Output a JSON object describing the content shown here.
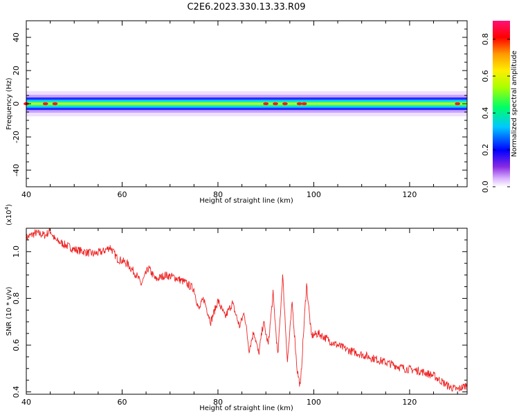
{
  "title": "C2E6.2023.330.13.33.R09",
  "chart_data": [
    {
      "type": "heatmap",
      "xlabel": "Height of straight line (km)",
      "ylabel": "Frequency (Hz)",
      "xlim": [
        40,
        132
      ],
      "ylim": [
        -50,
        50
      ],
      "xticks": [
        40,
        60,
        80,
        100,
        120
      ],
      "yticks": [
        -40,
        -20,
        0,
        20,
        40
      ],
      "band_center_hz": 0,
      "band_halfwidth_hz": 4,
      "colorbar": {
        "label": "Normalized spectral amplitude",
        "range": [
          0.0,
          0.9
        ],
        "ticks": [
          "0.0",
          "0.2",
          "0.4",
          "0.6",
          "0.8"
        ]
      },
      "peak_x_km": [
        40,
        44,
        46,
        90,
        92,
        94,
        97,
        98,
        130
      ]
    },
    {
      "type": "line",
      "xlabel": "Height of straight line (km)",
      "ylabel": "SNR (10 * v/v)",
      "yscale_label": "(x10",
      "yscale_exp": "4",
      "yscale_close": ")",
      "xlim": [
        40,
        132
      ],
      "ylim": [
        0.39,
        1.1
      ],
      "xticks": [
        40,
        60,
        80,
        100,
        120
      ],
      "yticks": [
        0.4,
        0.6,
        0.8,
        1.0
      ],
      "ytick_labels": [
        "0.4",
        "0.6",
        "0.8",
        "1.0"
      ],
      "color": "#ee2222",
      "x": [
        40,
        42,
        44,
        45,
        46,
        48,
        50,
        52,
        54,
        56,
        57.5,
        59,
        61,
        63,
        64,
        65.5,
        67,
        69,
        71,
        73,
        75,
        76,
        77,
        78.5,
        80,
        81.5,
        83,
        84.5,
        85.5,
        86.5,
        87.5,
        88.5,
        89.5,
        90.5,
        91.5,
        92.5,
        93.5,
        94.5,
        95.5,
        96.5,
        97.2,
        98,
        98.5,
        99.5,
        101,
        104,
        107,
        110,
        113,
        116,
        119,
        122,
        125,
        127,
        128.5,
        130,
        132
      ],
      "y": [
        1.06,
        1.08,
        1.07,
        1.09,
        1.05,
        1.03,
        1.01,
        1.0,
        0.99,
        1.0,
        1.02,
        0.97,
        0.95,
        0.9,
        0.86,
        0.93,
        0.88,
        0.9,
        0.89,
        0.87,
        0.84,
        0.75,
        0.8,
        0.7,
        0.79,
        0.72,
        0.78,
        0.68,
        0.74,
        0.58,
        0.66,
        0.56,
        0.7,
        0.6,
        0.82,
        0.55,
        0.9,
        0.53,
        0.78,
        0.5,
        0.42,
        0.7,
        0.86,
        0.64,
        0.65,
        0.61,
        0.58,
        0.56,
        0.54,
        0.52,
        0.5,
        0.49,
        0.47,
        0.44,
        0.42,
        0.41,
        0.43
      ]
    }
  ]
}
